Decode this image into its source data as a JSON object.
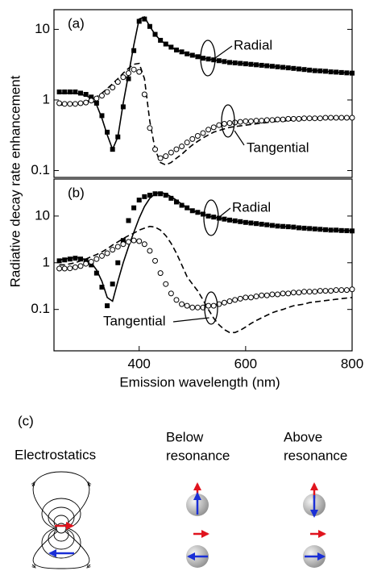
{
  "figure": {
    "ylabel": "Radiative decay rate enhancement"
  },
  "chart_data": [
    {
      "type": "scatter-line",
      "panel_label": "(a)",
      "log_y": true,
      "xlim": [
        240,
        800
      ],
      "ylim": [
        0.08,
        19
      ],
      "yticks": [
        0.1,
        1,
        10
      ],
      "x": [
        250,
        260,
        270,
        280,
        290,
        300,
        310,
        320,
        330,
        340,
        350,
        360,
        370,
        380,
        390,
        400,
        410,
        420,
        430,
        440,
        450,
        460,
        470,
        480,
        490,
        500,
        510,
        520,
        530,
        540,
        550,
        560,
        570,
        580,
        590,
        600,
        610,
        620,
        630,
        640,
        650,
        660,
        670,
        680,
        690,
        700,
        710,
        720,
        730,
        740,
        750,
        760,
        770,
        780,
        790,
        800
      ],
      "series": [
        {
          "name": "Radial",
          "color": "#000000",
          "marker": "square",
          "line_style": "solid",
          "values": [
            1.3,
            1.3,
            1.3,
            1.3,
            1.25,
            1.2,
            1.1,
            0.9,
            0.6,
            0.35,
            0.2,
            0.3,
            0.8,
            2,
            5,
            13,
            14,
            11,
            8.5,
            7,
            6.2,
            5.6,
            5.1,
            4.8,
            4.5,
            4.3,
            4.1,
            3.9,
            3.8,
            3.7,
            3.6,
            3.5,
            3.4,
            3.35,
            3.3,
            3.25,
            3.2,
            3.15,
            3.1,
            3.05,
            3,
            2.95,
            2.9,
            2.85,
            2.8,
            2.75,
            2.7,
            2.65,
            2.6,
            2.58,
            2.55,
            2.5,
            2.48,
            2.45,
            2.42,
            2.4
          ],
          "theory": [
            1.25,
            1.25,
            1.25,
            1.25,
            1.2,
            1.15,
            1.05,
            0.85,
            0.55,
            0.32,
            0.2,
            0.3,
            0.9,
            2.3,
            6,
            14,
            15,
            11,
            8.5,
            7,
            6.2,
            5.6,
            5.1,
            4.8,
            4.5,
            4.3,
            4.1,
            3.9,
            3.8,
            3.7,
            3.6,
            3.5,
            3.4,
            3.35,
            3.3,
            3.25,
            3.2,
            3.15,
            3.1,
            3.05,
            3,
            2.95,
            2.9,
            2.85,
            2.8,
            2.75,
            2.7,
            2.65,
            2.6,
            2.58,
            2.55,
            2.5,
            2.48,
            2.45,
            2.42,
            2.4
          ]
        },
        {
          "name": "Tangential",
          "color": "#000000",
          "marker": "circle",
          "line_style": "dashed",
          "values": [
            0.9,
            0.88,
            0.88,
            0.88,
            0.9,
            0.92,
            0.98,
            1.05,
            1.15,
            1.3,
            1.5,
            1.8,
            2.1,
            2.4,
            2.7,
            2.5,
            1.2,
            0.4,
            0.2,
            0.15,
            0.16,
            0.18,
            0.2,
            0.22,
            0.25,
            0.28,
            0.31,
            0.34,
            0.38,
            0.41,
            0.44,
            0.46,
            0.47,
            0.48,
            0.49,
            0.5,
            0.5,
            0.51,
            0.51,
            0.52,
            0.52,
            0.53,
            0.53,
            0.54,
            0.54,
            0.54,
            0.55,
            0.55,
            0.55,
            0.55,
            0.56,
            0.56,
            0.56,
            0.56,
            0.56,
            0.56
          ],
          "theory": [
            0.85,
            0.85,
            0.86,
            0.87,
            0.9,
            0.95,
            1.0,
            1.1,
            1.25,
            1.45,
            1.7,
            2.0,
            2.4,
            2.8,
            3.2,
            3.3,
            2,
            0.5,
            0.2,
            0.13,
            0.12,
            0.13,
            0.15,
            0.17,
            0.2,
            0.23,
            0.26,
            0.29,
            0.32,
            0.35,
            0.37,
            0.39,
            0.41,
            0.42,
            0.43,
            0.44,
            0.45,
            0.46,
            0.47,
            0.48,
            0.49,
            0.5,
            0.5,
            0.51,
            0.52,
            0.52,
            0.53,
            0.53,
            0.54,
            0.54,
            0.55,
            0.55,
            0.55,
            0.56,
            0.56,
            0.56
          ]
        }
      ]
    },
    {
      "type": "scatter-line",
      "panel_label": "(b)",
      "log_y": true,
      "xlabel": "Emission wavelength (nm)",
      "xlim": [
        240,
        800
      ],
      "ylim": [
        0.013,
        62
      ],
      "yticks": [
        0.1,
        1,
        10
      ],
      "xticks": [
        400,
        600,
        800
      ],
      "x": [
        250,
        260,
        270,
        280,
        290,
        300,
        310,
        320,
        330,
        340,
        350,
        360,
        370,
        380,
        390,
        400,
        410,
        420,
        430,
        440,
        450,
        460,
        470,
        480,
        490,
        500,
        510,
        520,
        530,
        540,
        550,
        560,
        570,
        580,
        590,
        600,
        610,
        620,
        630,
        640,
        650,
        660,
        670,
        680,
        690,
        700,
        710,
        720,
        730,
        740,
        750,
        760,
        770,
        780,
        790,
        800
      ],
      "series": [
        {
          "name": "Radial",
          "color": "#000000",
          "marker": "square",
          "line_style": "solid",
          "values": [
            1.1,
            1.15,
            1.2,
            1.25,
            1.2,
            1.1,
            0.9,
            0.6,
            0.3,
            0.12,
            0.35,
            1,
            3,
            8,
            15,
            22,
            26,
            28,
            30,
            30,
            28,
            24,
            20,
            17,
            15,
            13,
            12,
            11,
            10,
            9.5,
            9,
            8.6,
            8.2,
            7.9,
            7.6,
            7.3,
            7.1,
            6.9,
            6.7,
            6.5,
            6.3,
            6.1,
            6,
            5.9,
            5.8,
            5.6,
            5.5,
            5.4,
            5.3,
            5.2,
            5.1,
            5,
            5,
            4.9,
            4.85,
            4.8
          ],
          "theory": [
            1.15,
            1.2,
            1.25,
            1.3,
            1.25,
            1.15,
            1.0,
            0.7,
            0.4,
            0.18,
            0.15,
            0.4,
            1,
            2.2,
            4.5,
            9,
            16,
            24,
            30,
            32,
            30,
            26,
            22,
            18,
            15,
            13,
            12,
            11,
            10,
            9.5,
            9,
            8.6,
            8.2,
            7.9,
            7.6,
            7.3,
            7.1,
            6.9,
            6.7,
            6.5,
            6.3,
            6.1,
            6,
            5.9,
            5.8,
            5.6,
            5.5,
            5.4,
            5.3,
            5.2,
            5.1,
            5,
            5,
            4.9,
            4.85,
            4.8
          ]
        },
        {
          "name": "Tangential",
          "color": "#000000",
          "marker": "circle",
          "line_style": "dashed",
          "values": [
            0.75,
            0.75,
            0.76,
            0.8,
            0.85,
            0.95,
            1.05,
            1.2,
            1.4,
            1.6,
            1.9,
            2.2,
            2.5,
            2.8,
            3.0,
            2.9,
            2.5,
            1.8,
            1.1,
            0.6,
            0.35,
            0.22,
            0.16,
            0.13,
            0.12,
            0.11,
            0.11,
            0.11,
            0.12,
            0.12,
            0.13,
            0.14,
            0.15,
            0.16,
            0.17,
            0.18,
            0.18,
            0.19,
            0.2,
            0.2,
            0.21,
            0.21,
            0.22,
            0.22,
            0.23,
            0.23,
            0.24,
            0.24,
            0.24,
            0.25,
            0.25,
            0.25,
            0.26,
            0.26,
            0.26,
            0.27
          ],
          "theory": [
            0.9,
            0.9,
            0.95,
            1,
            1.1,
            1.2,
            1.35,
            1.5,
            1.7,
            2,
            2.4,
            2.8,
            3.3,
            3.8,
            4.3,
            5,
            5.5,
            6,
            5.8,
            5,
            3.8,
            2.6,
            1.6,
            0.9,
            0.5,
            0.35,
            0.25,
            0.16,
            0.1,
            0.065,
            0.047,
            0.037,
            0.032,
            0.032,
            0.036,
            0.042,
            0.05,
            0.058,
            0.066,
            0.075,
            0.085,
            0.093,
            0.1,
            0.11,
            0.12,
            0.125,
            0.13,
            0.14,
            0.145,
            0.15,
            0.155,
            0.16,
            0.165,
            0.17,
            0.175,
            0.18
          ]
        }
      ]
    }
  ],
  "diagram": {
    "label": "(c)",
    "columns": [
      [
        "Electrostatics"
      ],
      [
        "Below",
        "resonance"
      ],
      [
        "Above",
        "resonance"
      ]
    ]
  }
}
